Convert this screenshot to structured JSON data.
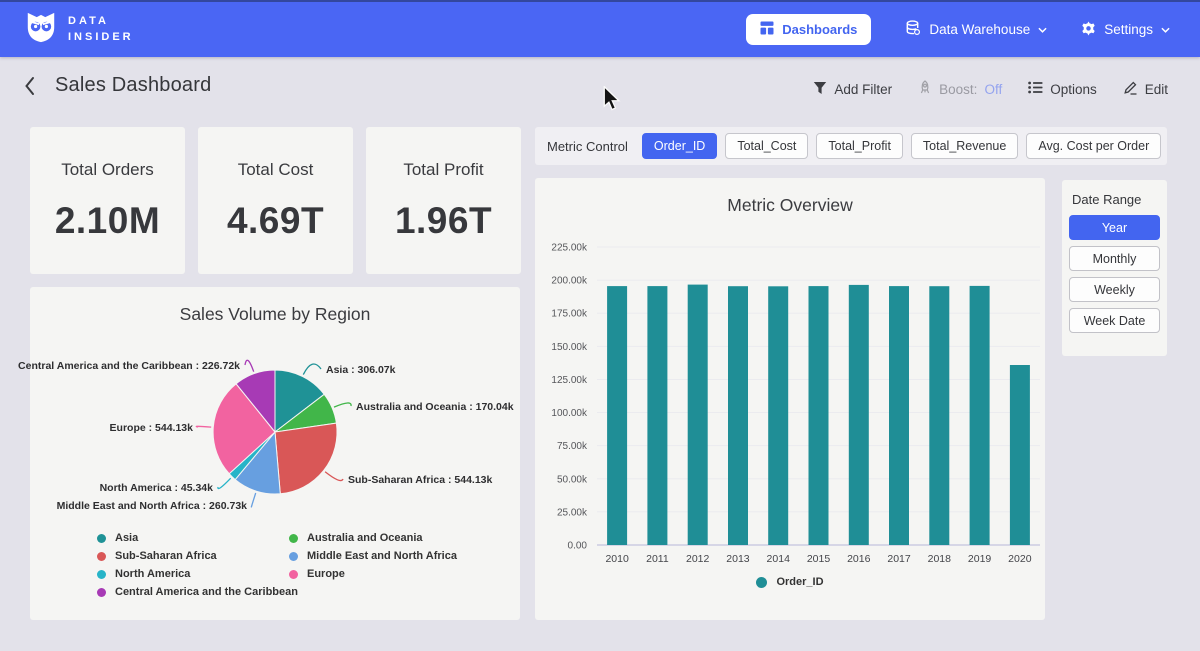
{
  "colors": {
    "navbar_bg": "#4a66f4",
    "accent": "#4365f0",
    "page_bg": "#e3e2ea",
    "card_bg": "#f5f5f3",
    "strip_bg": "#f0eff3",
    "bar_color": "#1f8e96",
    "boost_off_text": "#94a3ef"
  },
  "navbar": {
    "brand_line1": "DATA",
    "brand_line2": "INSIDER",
    "dashboards": "Dashboards",
    "data_warehouse": "Data Warehouse",
    "settings": "Settings"
  },
  "header": {
    "title": "Sales Dashboard",
    "add_filter": "Add Filter",
    "boost_label": "Boost:",
    "boost_value": "Off",
    "options": "Options",
    "edit": "Edit"
  },
  "kpis": [
    {
      "label": "Total Orders",
      "value": "2.10M"
    },
    {
      "label": "Total Cost",
      "value": "4.69T"
    },
    {
      "label": "Total Profit",
      "value": "1.96T"
    }
  ],
  "metric_control": {
    "label": "Metric Control",
    "options": [
      "Order_ID",
      "Total_Cost",
      "Total_Profit",
      "Total_Revenue",
      "Avg. Cost per Order"
    ],
    "selected": "Order_ID"
  },
  "date_range": {
    "label": "Date Range",
    "options": [
      "Year",
      "Monthly",
      "Weekly",
      "Week Date"
    ],
    "selected": "Year"
  },
  "chart_data": [
    {
      "type": "pie",
      "title": "Sales Volume by Region",
      "unit": "k",
      "direction": "clockwise",
      "start_angle_deg": 0,
      "slices": [
        {
          "label": "Asia",
          "value": 306.07,
          "display": "Asia : 306.07k",
          "color": "#1f9296"
        },
        {
          "label": "Australia and Oceania",
          "value": 170.04,
          "display": "Australia and Oceania : 170.04k",
          "color": "#41b649"
        },
        {
          "label": "Sub-Saharan Africa",
          "value": 544.13,
          "display": "Sub-Saharan Africa : 544.13k",
          "color": "#d95757"
        },
        {
          "label": "Middle East and North Africa",
          "value": 260.73,
          "display": "Middle East and North Africa : 260.73k",
          "color": "#679fe0"
        },
        {
          "label": "North America",
          "value": 45.34,
          "display": "North America : 45.34k",
          "color": "#27b4c8"
        },
        {
          "label": "Europe",
          "value": 544.13,
          "display": "Europe : 544.13k",
          "color": "#f263a0"
        },
        {
          "label": "Central America and the Caribbean",
          "value": 226.72,
          "display": "Central America and the Caribbean : 226.72k",
          "color": "#a73ab5"
        }
      ]
    },
    {
      "type": "bar",
      "title": "Metric Overview",
      "categories": [
        "2010",
        "2011",
        "2012",
        "2013",
        "2014",
        "2015",
        "2016",
        "2017",
        "2018",
        "2019",
        "2020"
      ],
      "series": [
        {
          "name": "Order_ID",
          "unit": "k",
          "values": [
            195.5,
            195.5,
            196.6,
            195.4,
            195.3,
            195.5,
            196.4,
            195.5,
            195.4,
            195.6,
            135.9
          ]
        }
      ],
      "ylim_k": [
        0,
        225
      ],
      "ytick_labels": [
        "0.00",
        "25.00k",
        "50.00k",
        "75.00k",
        "100.00k",
        "125.00k",
        "150.00k",
        "175.00k",
        "200.00k",
        "225.00k"
      ],
      "grid": true,
      "legend": [
        "Order_ID"
      ],
      "legend_position": "bottom",
      "color": "#1f8e96"
    }
  ]
}
